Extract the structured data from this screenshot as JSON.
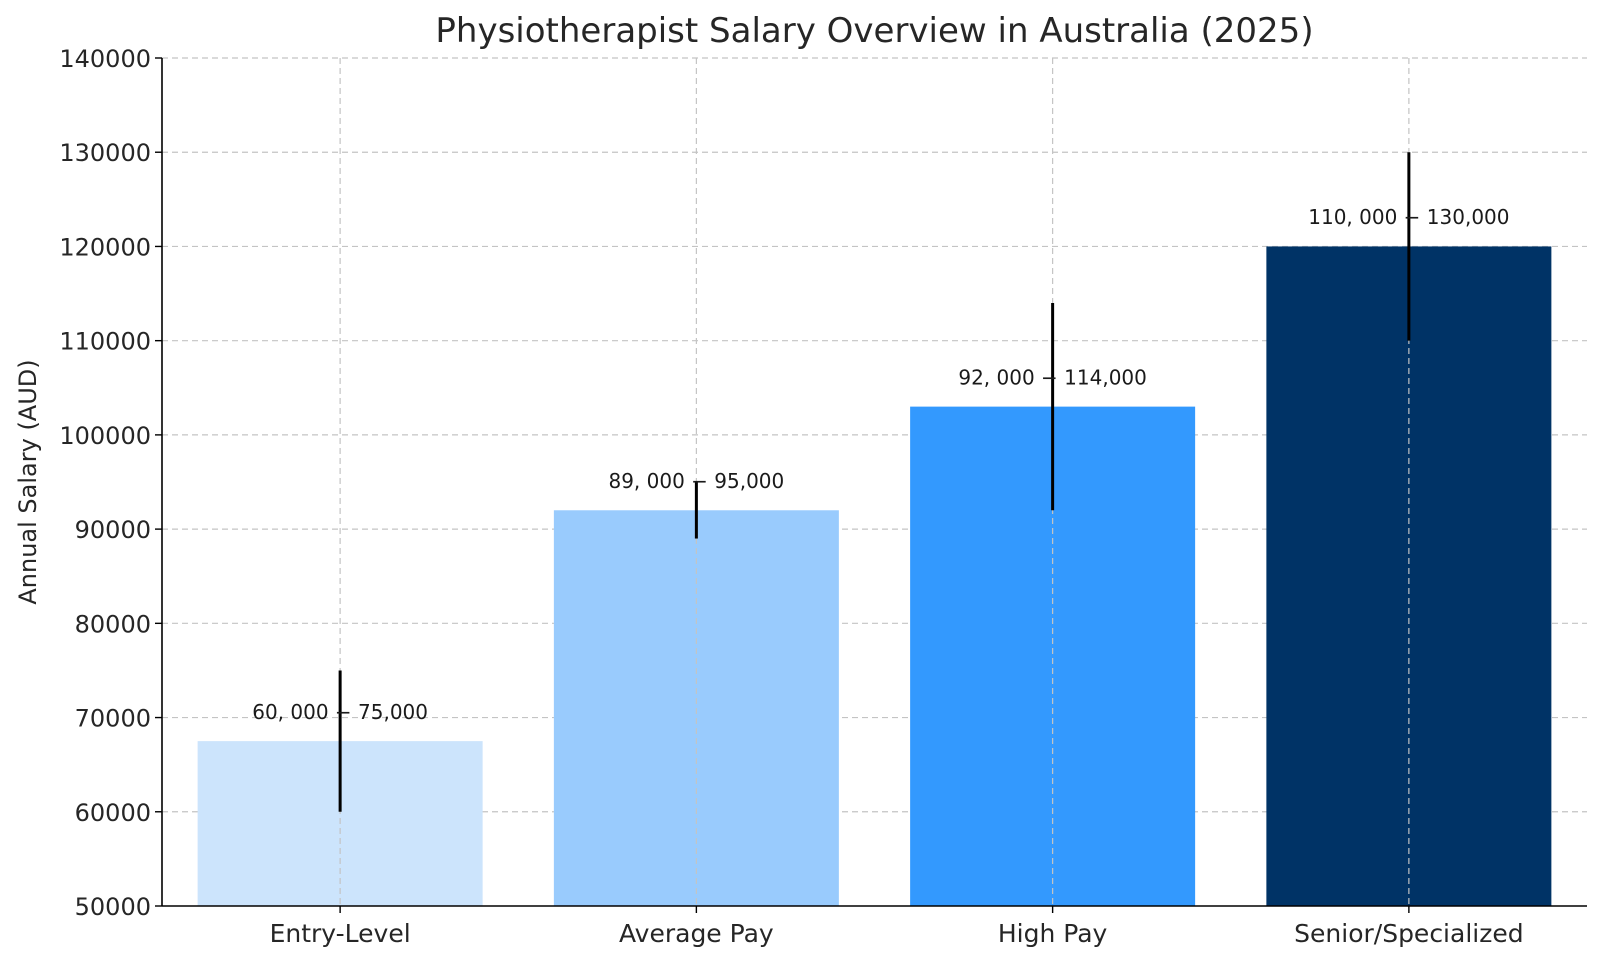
{
  "chart_data": {
    "type": "bar",
    "title": "Physiotherapist Salary Overview in Australia (2025)",
    "xlabel": "",
    "ylabel": "Annual Salary (AUD)",
    "ylim": [
      50000,
      140000
    ],
    "yticks": [
      50000,
      60000,
      70000,
      80000,
      90000,
      100000,
      110000,
      120000,
      130000,
      140000
    ],
    "ytick_labels": [
      "50000",
      "60000",
      "70000",
      "80000",
      "90000",
      "100000",
      "110000",
      "120000",
      "130000",
      "140000"
    ],
    "grid": true,
    "categories": [
      "Entry-Level",
      "Average Pay",
      "High Pay",
      "Senior/Specialized"
    ],
    "values": [
      67500,
      92000,
      103000,
      120000
    ],
    "error_ranges": [
      [
        60000,
        75000
      ],
      [
        89000,
        95000
      ],
      [
        92000,
        114000
      ],
      [
        110000,
        130000
      ]
    ],
    "data_labels": [
      "60, 000 − 75,000",
      "89, 000 − 95,000",
      "92, 000 − 114,000",
      "110, 000 − 130,000"
    ],
    "colors": [
      "#cce4fc",
      "#99cbfd",
      "#3399fe",
      "#003366"
    ]
  }
}
